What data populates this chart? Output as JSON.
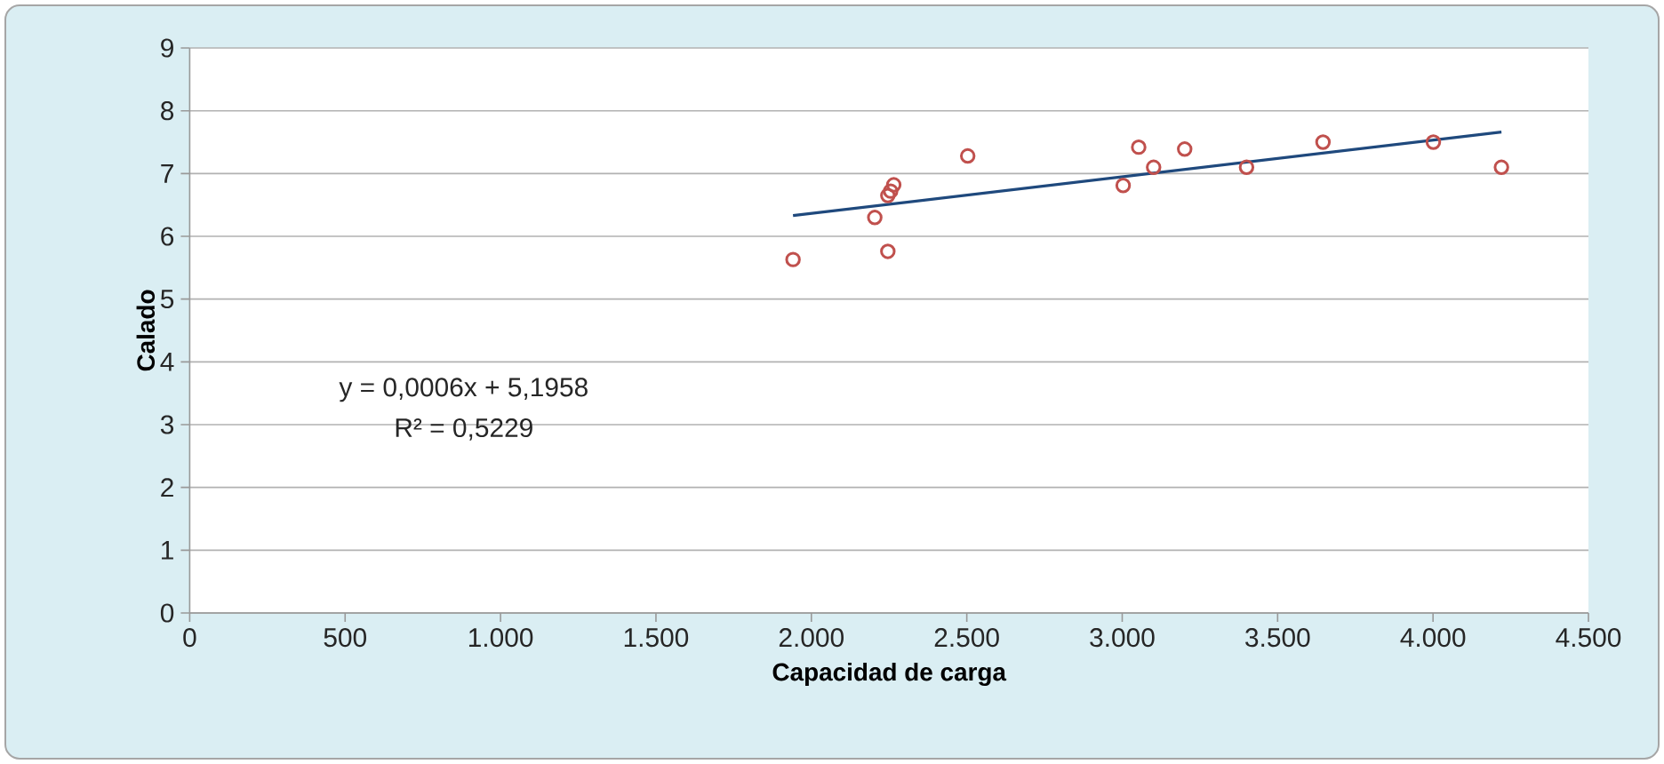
{
  "chart_data": {
    "type": "scatter",
    "xlabel": "Capacidad de carga",
    "ylabel": "Calado",
    "xlim": [
      0,
      4500
    ],
    "ylim": [
      0,
      9
    ],
    "xticks": [
      0,
      500,
      {
        "value": 1000,
        "label": "1.000"
      },
      {
        "value": 1500,
        "label": "1.500"
      },
      {
        "value": 2000,
        "label": "2.000"
      },
      {
        "value": 2500,
        "label": "2.500"
      },
      {
        "value": 3000,
        "label": "3.000"
      },
      {
        "value": 3500,
        "label": "3.500"
      },
      {
        "value": 4000,
        "label": "4.000"
      },
      {
        "value": 4500,
        "label": "4.500"
      }
    ],
    "yticks": [
      0,
      1,
      2,
      3,
      4,
      5,
      6,
      7,
      8,
      9
    ],
    "grid": "y",
    "marker": "circle",
    "series": [
      {
        "color": "#c0504d",
        "x": [
          1941,
          2204,
          2246,
          2246,
          2255,
          2265,
          2503,
          3003,
          3053,
          3101,
          3201,
          3400,
          3646,
          4001,
          4220
        ],
        "values": [
          5.63,
          6.3,
          5.76,
          6.65,
          6.72,
          6.82,
          7.28,
          6.81,
          7.42,
          7.1,
          7.39,
          7.1,
          7.5,
          7.5,
          7.1
        ]
      },
      {
        "type": "line",
        "color": "#1f497d",
        "marker": "none",
        "line_style": "solid",
        "x": [
          1941,
          4220
        ],
        "values": [
          6.33,
          7.66
        ]
      }
    ],
    "annotations": [
      "y = 0,0006x + 5,1958",
      "R² = 0,5229"
    ]
  }
}
